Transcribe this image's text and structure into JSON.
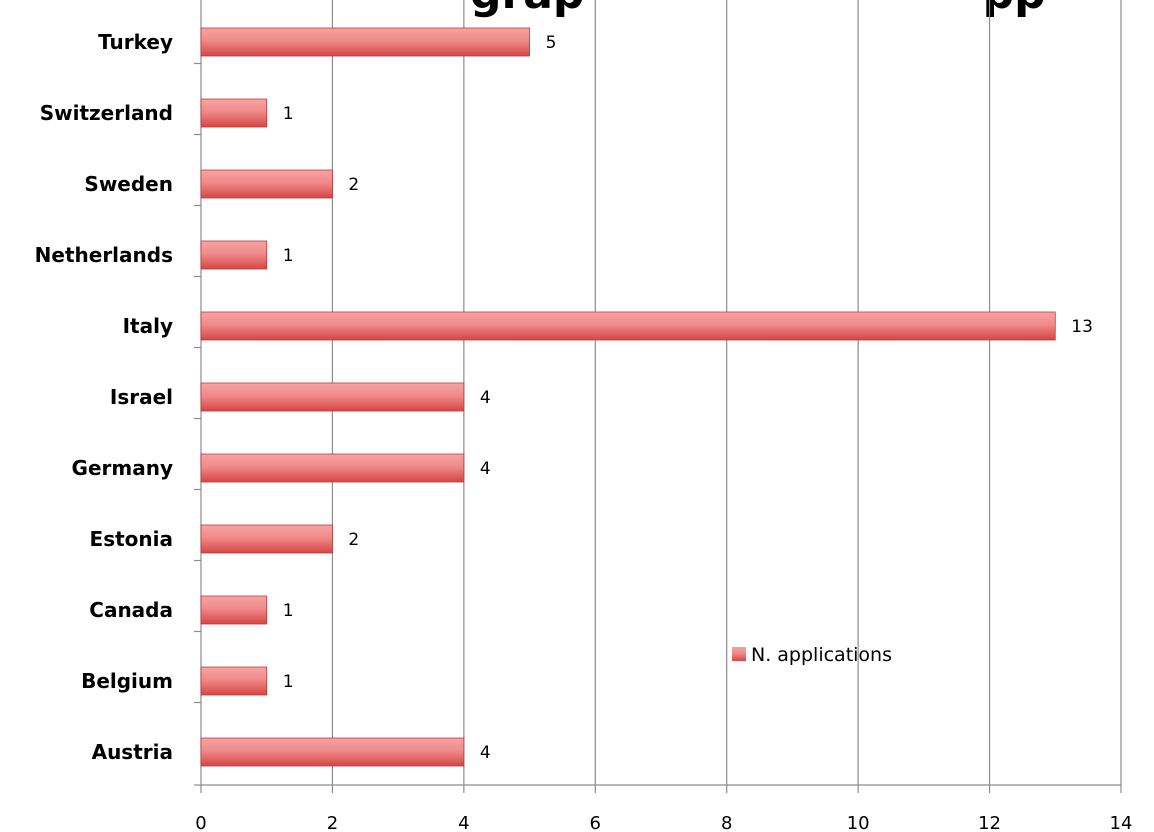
{
  "chart_data": {
    "type": "bar",
    "orientation": "horizontal",
    "title_visible_fragment": "grap                          pp",
    "categories": [
      "Turkey",
      "Switzerland",
      "Sweden",
      "Netherlands",
      "Italy",
      "Israel",
      "Germany",
      "Estonia",
      "Canada",
      "Belgium",
      "Austria"
    ],
    "series": [
      {
        "name": "N. applications",
        "values": [
          5,
          1,
          2,
          1,
          13,
          4,
          4,
          2,
          1,
          1,
          4
        ]
      }
    ],
    "data_labels": [
      "5",
      "1",
      "2",
      "1",
      "13",
      "4",
      "4",
      "2",
      "1",
      "1",
      "4"
    ],
    "xlim": [
      0,
      14
    ],
    "x_ticks": [
      "0",
      "2",
      "4",
      "6",
      "8",
      "10",
      "12",
      "14"
    ],
    "grid": "vertical",
    "legend_position": "center-right",
    "colors": {
      "bar_top": "#f7a3a3",
      "bar_bottom": "#d64545",
      "grid": "#8c8c8c",
      "axis": "#8c8c8c"
    }
  }
}
